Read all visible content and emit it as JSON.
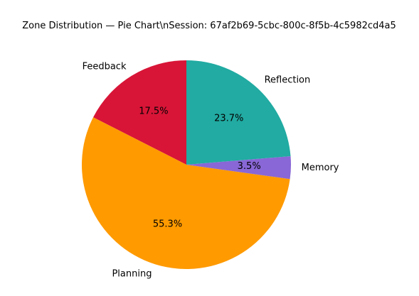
{
  "chart_data": {
    "type": "pie",
    "title": "Zone Distribution — Pie Chart\\nSession: 67af2b69-5cbc-800c-8f5b-4c5982cd4a5",
    "start_angle_deg": 90,
    "direction": "counterclockwise",
    "slices": [
      {
        "label": "Feedback",
        "value": 17.5,
        "pct_label": "17.5%",
        "color": "#d81537"
      },
      {
        "label": "Planning",
        "value": 55.3,
        "pct_label": "55.3%",
        "color": "#ff9a00"
      },
      {
        "label": "Memory",
        "value": 3.5,
        "pct_label": "3.5%",
        "color": "#8967d6"
      },
      {
        "label": "Reflection",
        "value": 23.7,
        "pct_label": "23.7%",
        "color": "#21aba2"
      }
    ]
  }
}
